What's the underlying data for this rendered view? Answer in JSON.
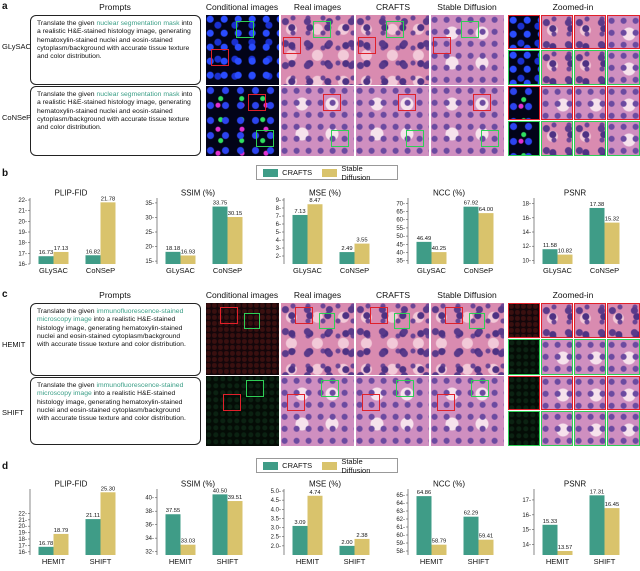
{
  "panels": {
    "a": "a",
    "b": "b",
    "c": "c",
    "d": "d"
  },
  "headers": {
    "prompts": "Prompts",
    "conditional": "Conditional images",
    "real": "Real images",
    "crafts": "CRAFTS",
    "stable": "Stable Diffusion",
    "zoomed": "Zoomed-in"
  },
  "rows_a": [
    {
      "label": "GLySAC",
      "prompt_pre": "Translate the given ",
      "prompt_hl": "nuclear segmentation mask",
      "prompt_post": " into a realistic H&E-stained histology image, generating hematoxylin-stained nuclei and eosin-stained cytoplasm/background with accurate tissue texture and color distribution."
    },
    {
      "label": "CoNSeP",
      "prompt_pre": "Translate the given ",
      "prompt_hl": "nuclear segmentation mask",
      "prompt_post": " into a realistic H&E-stained histology image, generating hematoxylin-stained nuclei and eosin-stained cytoplasm/background with accurate tissue texture and color distribution."
    }
  ],
  "rows_c": [
    {
      "label": "HEMIT",
      "prompt_pre": "Translate the given ",
      "prompt_hl": "immunofluorescence-stained microscopy image",
      "prompt_post": " into a realistic H&E-stained histology image, generating hematoxylin-stained nuclei and eosin-stained cytoplasm/background with accurate tissue texture and color distribution."
    },
    {
      "label": "SHIFT",
      "prompt_pre": "Translate the given ",
      "prompt_hl": "immunofluorescence-stained microscopy image",
      "prompt_post": " into a realistic H&E-stained histology image, generating hematoxylin-stained nuclei and eosin-stained cytoplasm/background with accurate tissue texture and color distribution."
    }
  ],
  "legend": {
    "crafts": "CRAFTS",
    "stable": "Stable Diffusion",
    "crafts_color": "#3f9c87",
    "stable_color": "#d9c36c"
  },
  "chart_data": [
    {
      "panel": "b",
      "type": "bar",
      "title": "PLIP-FID",
      "categories": [
        "GLySAC",
        "CoNSeP"
      ],
      "series": [
        {
          "name": "CRAFTS",
          "values": [
            16.73,
            16.82
          ]
        },
        {
          "name": "Stable Diffusion",
          "values": [
            17.13,
            21.78
          ]
        }
      ],
      "ylim": [
        16,
        22
      ],
      "yticks": [
        16,
        17,
        18,
        19,
        20,
        21,
        22
      ],
      "labels": [
        [
          "16.73",
          "16.82"
        ],
        [
          "17.13",
          "21.78"
        ]
      ]
    },
    {
      "panel": "b",
      "type": "bar",
      "title": "SSIM (%)",
      "categories": [
        "GLySAC",
        "CoNSeP"
      ],
      "series": [
        {
          "name": "CRAFTS",
          "values": [
            18.18,
            33.75
          ]
        },
        {
          "name": "Stable Diffusion",
          "values": [
            16.93,
            30.15
          ]
        }
      ],
      "ylim": [
        14,
        36
      ],
      "yticks": [
        15,
        20,
        25,
        30,
        35
      ],
      "labels": [
        [
          "18.18",
          "33.75"
        ],
        [
          "16.93",
          "30.15"
        ]
      ]
    },
    {
      "panel": "b",
      "type": "bar",
      "title": "MSE (%)",
      "categories": [
        "GLySAC",
        "CoNSeP"
      ],
      "series": [
        {
          "name": "CRAFTS",
          "values": [
            7.13,
            2.49
          ]
        },
        {
          "name": "Stable Diffusion",
          "values": [
            8.47,
            3.55
          ]
        }
      ],
      "ylim": [
        1,
        9
      ],
      "yticks": [
        2,
        3,
        4,
        5,
        6,
        7,
        8,
        9
      ],
      "labels": [
        [
          "7.13",
          "2.49"
        ],
        [
          "8.47",
          "3.55"
        ]
      ]
    },
    {
      "panel": "b",
      "type": "bar",
      "title": "NCC (%)",
      "categories": [
        "GLySAC",
        "CoNSeP"
      ],
      "series": [
        {
          "name": "CRAFTS",
          "values": [
            46.49,
            67.92
          ]
        },
        {
          "name": "Stable Diffusion",
          "values": [
            40.25,
            64.0
          ]
        }
      ],
      "ylim": [
        33,
        72
      ],
      "yticks": [
        35,
        40,
        45,
        50,
        55,
        60,
        65,
        70
      ],
      "labels": [
        [
          "46.49",
          "67.92"
        ],
        [
          "40.25",
          "64.00"
        ]
      ]
    },
    {
      "panel": "b",
      "type": "bar",
      "title": "PSNR",
      "categories": [
        "GLySAC",
        "CoNSeP"
      ],
      "series": [
        {
          "name": "CRAFTS",
          "values": [
            11.58,
            17.38
          ]
        },
        {
          "name": "Stable Diffusion",
          "values": [
            10.82,
            15.32
          ]
        }
      ],
      "ylim": [
        9.5,
        18.5
      ],
      "yticks": [
        10,
        12,
        14,
        16,
        18
      ],
      "labels": [
        [
          "11.58",
          "17.38"
        ],
        [
          "10.82",
          "15.32"
        ]
      ]
    },
    {
      "panel": "d",
      "type": "bar",
      "title": "PLIP-FID",
      "categories": [
        "HEMIT",
        "SHIFT"
      ],
      "series": [
        {
          "name": "CRAFTS",
          "values": [
            16.78,
            21.11
          ]
        },
        {
          "name": "Stable Diffusion",
          "values": [
            18.79,
            25.3
          ]
        }
      ],
      "ylim": [
        15.5,
        25.5
      ],
      "yticks": [
        16,
        17,
        18,
        19,
        20,
        21,
        22
      ],
      "labels": [
        [
          "16.78",
          "21.11"
        ],
        [
          "18.79",
          "25.30"
        ]
      ]
    },
    {
      "panel": "d",
      "type": "bar",
      "title": "SSIM (%)",
      "categories": [
        "HEMIT",
        "SHIFT"
      ],
      "series": [
        {
          "name": "CRAFTS",
          "values": [
            37.55,
            40.5
          ]
        },
        {
          "name": "Stable Diffusion",
          "values": [
            33.03,
            39.51
          ]
        }
      ],
      "ylim": [
        31.5,
        41
      ],
      "yticks": [
        32,
        34,
        36,
        38,
        40
      ],
      "labels": [
        [
          "37.55",
          "40.50"
        ],
        [
          "33.03",
          "39.51"
        ]
      ]
    },
    {
      "panel": "d",
      "type": "bar",
      "title": "MSE (%)",
      "categories": [
        "HEMIT",
        "SHIFT"
      ],
      "series": [
        {
          "name": "CRAFTS",
          "values": [
            3.09,
            2.0
          ]
        },
        {
          "name": "Stable Diffusion",
          "values": [
            4.74,
            2.38
          ]
        }
      ],
      "ylim": [
        1.5,
        5
      ],
      "yticks": [
        2.0,
        2.5,
        3.0,
        3.5,
        4.0,
        4.5,
        5.0
      ],
      "labels": [
        [
          "3.09",
          "2.00"
        ],
        [
          "4.74",
          "2.38"
        ]
      ]
    },
    {
      "panel": "d",
      "type": "bar",
      "title": "NCC (%)",
      "categories": [
        "HEMIT",
        "SHIFT"
      ],
      "series": [
        {
          "name": "CRAFTS",
          "values": [
            64.86,
            62.29
          ]
        },
        {
          "name": "Stable Diffusion",
          "values": [
            58.79,
            59.41
          ]
        }
      ],
      "ylim": [
        57.5,
        65.5
      ],
      "yticks": [
        58,
        59,
        60,
        61,
        62,
        63,
        64,
        65
      ],
      "labels": [
        [
          "64.86",
          "62.29"
        ],
        [
          "58.79",
          "59.41"
        ]
      ]
    },
    {
      "panel": "d",
      "type": "bar",
      "title": "PSNR",
      "categories": [
        "HEMIT",
        "SHIFT"
      ],
      "series": [
        {
          "name": "CRAFTS",
          "values": [
            15.33,
            17.31
          ]
        },
        {
          "name": "Stable Diffusion",
          "values": [
            13.57,
            16.45
          ]
        }
      ],
      "ylim": [
        13.3,
        17.6
      ],
      "yticks": [
        14,
        15,
        16,
        17
      ],
      "labels": [
        [
          "15.33",
          "17.31"
        ],
        [
          "13.57",
          "16.45"
        ]
      ]
    }
  ]
}
